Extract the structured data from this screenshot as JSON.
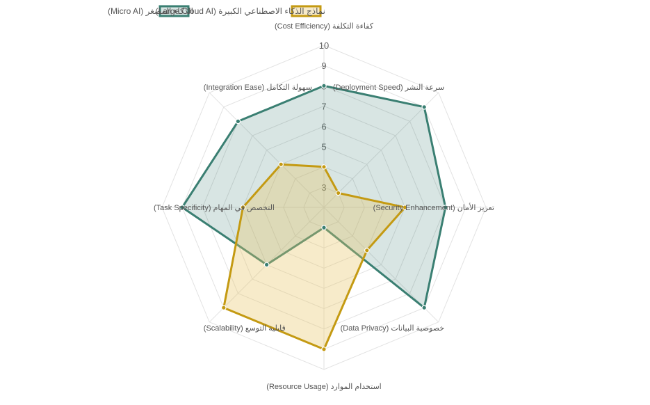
{
  "chart_data": {
    "type": "radar",
    "title": "",
    "axes": [
      "كفاءة التكلفة (Cost Efficiency)",
      "سرعة النشر (Deployment Speed)",
      "تعزيز الأمان (Security Enhancement)",
      "خصوصية البيانات (Data Privacy)",
      "استخدام الموارد (Resource Usage)",
      "قابلية التوسع (Scalability)",
      "التخصص في المهام (Task Specificity)",
      "سهولة التكامل (Integration Ease)"
    ],
    "r_range": [
      2,
      10
    ],
    "ticks": [
      "3",
      "4",
      "5",
      "6",
      "7",
      "8",
      "9",
      "10"
    ],
    "grid": true,
    "legend_position": "top",
    "series": [
      {
        "name": "الذكاء المصغر (Micro AI)",
        "values": [
          8,
          9,
          8,
          9,
          3,
          6,
          9,
          8
        ],
        "color": "#3a7f72",
        "fill": "rgba(58,127,114,0.2)"
      },
      {
        "name": "نماذج الذكاء الاصطناعي الكبيرة (Large Cloud AI)",
        "values": [
          4,
          3,
          6,
          5,
          9,
          9,
          6,
          5
        ],
        "color": "#c49a12",
        "fill": "rgba(232,199,102,0.35)"
      }
    ]
  }
}
